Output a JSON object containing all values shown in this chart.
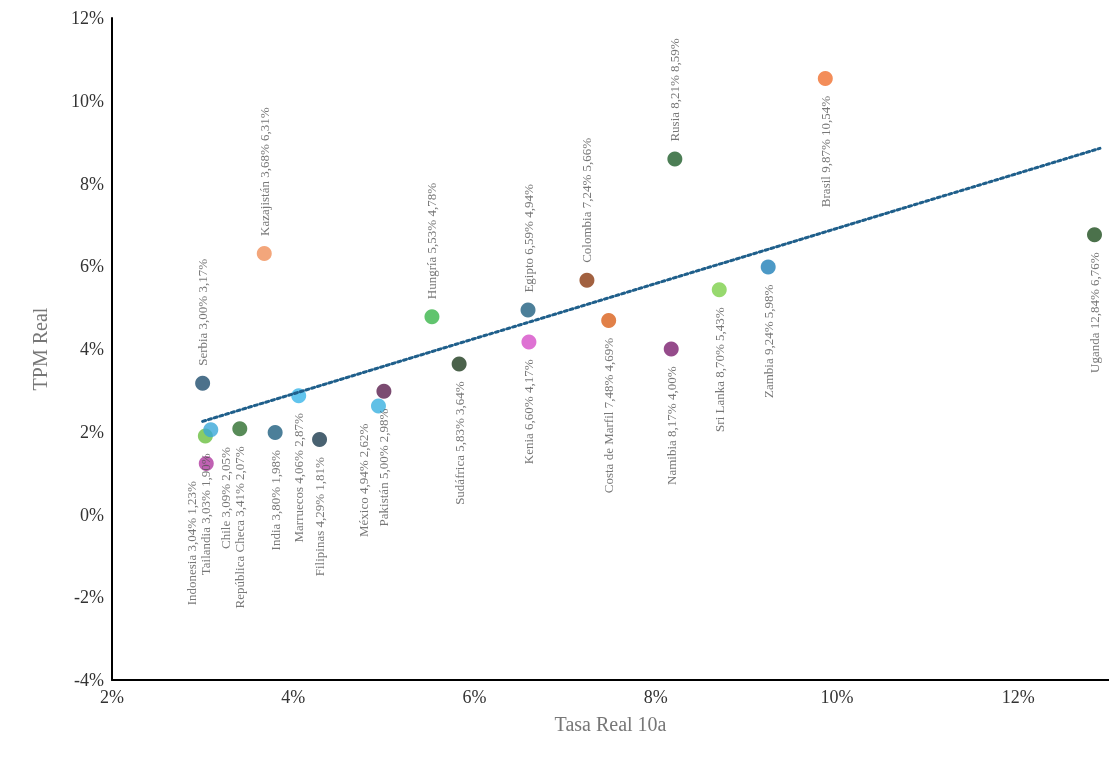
{
  "chart_data": {
    "type": "scatter",
    "xlabel": "Tasa Real 10a",
    "ylabel": "TPM Real",
    "xlim": [
      2,
      13
    ],
    "ylim": [
      -4,
      12
    ],
    "xticks": [
      {
        "value": 2,
        "label": "2%"
      },
      {
        "value": 4,
        "label": "4%"
      },
      {
        "value": 6,
        "label": "6%"
      },
      {
        "value": 8,
        "label": "8%"
      },
      {
        "value": 10,
        "label": "10%"
      },
      {
        "value": 12,
        "label": "12%"
      }
    ],
    "yticks": [
      {
        "value": -4,
        "label": "-4%"
      },
      {
        "value": -2,
        "label": "-2%"
      },
      {
        "value": 0,
        "label": "0%"
      },
      {
        "value": 2,
        "label": "2%"
      },
      {
        "value": 4,
        "label": "4%"
      },
      {
        "value": 6,
        "label": "6%"
      },
      {
        "value": 8,
        "label": "8%"
      },
      {
        "value": 10,
        "label": "10%"
      },
      {
        "value": 12,
        "label": "12%"
      }
    ],
    "grid": false,
    "series": [
      {
        "marker": "circle",
        "x": [
          3.03,
          3.04,
          3.0,
          3.09,
          3.68,
          3.41,
          3.8,
          4.06,
          4.29,
          5.0,
          4.94,
          5.53,
          5.83,
          6.59,
          6.6,
          7.24,
          7.48,
          8.17,
          8.21,
          8.7,
          9.24,
          9.87,
          12.84
        ],
        "values": [
          1.9,
          1.23,
          3.17,
          2.05,
          6.31,
          2.07,
          1.98,
          2.87,
          1.81,
          2.98,
          2.62,
          4.78,
          3.64,
          4.94,
          4.17,
          5.66,
          4.69,
          4.0,
          8.59,
          5.43,
          5.98,
          10.54,
          6.76
        ],
        "colors": [
          "#6abf40",
          "#b03aa0",
          "#1f4e6e",
          "#3aa8d8",
          "#f0905a",
          "#2e6e2e",
          "#1f5f7f",
          "#3ab5e8",
          "#1c3b4e",
          "#5a1e4e",
          "#3ab0e0",
          "#3ab54a",
          "#1e3b1e",
          "#1f5f80",
          "#d64fc8",
          "#8b3a10",
          "#d9601a",
          "#7a1e6e",
          "#1f5e2a",
          "#7dd04a",
          "#1f80b8",
          "#f07030",
          "#1e4e1e"
        ],
        "value_labels": [
          "Tailandia 3,03% 1,90%",
          "Indonesia 3,04% 1,23%",
          "Serbia 3,00% 3,17%",
          "Chile 3,09% 2,05%",
          "Kazajistán 3,68% 6,31%",
          "República Checa 3,41% 2,07%",
          "India 3,80% 1,98%",
          "Marruecos 4,06% 2,87%",
          "Filipinas 4,29% 1,81%",
          "Pakistán 5,00% 2,98%",
          "México 4,94% 2,62%",
          "Hungría 5,53% 4,78%",
          "Sudáfrica 5,83% 3,64%",
          "Egipto 6,59% 4,94%",
          "Kenia 6,60% 4,17%",
          "Colombia 7,24% 5,66%",
          "Costa de Marfil 7,48% 4,69%",
          "Namibia 8,17% 4,00%",
          "Rusia 8,21% 8,59%",
          "Sri Lanka 8,70% 5,43%",
          "Zambia 9,24% 5,98%",
          "Brasil 9,87% 10,54%",
          "Uganda 12,84% 6,76%"
        ]
      },
      {
        "type": "line",
        "marker": "none",
        "color": "#1f5f8b",
        "line_style": "dotted",
        "x": [
          3.0,
          12.9
        ],
        "values": [
          2.25,
          8.85
        ]
      }
    ]
  }
}
